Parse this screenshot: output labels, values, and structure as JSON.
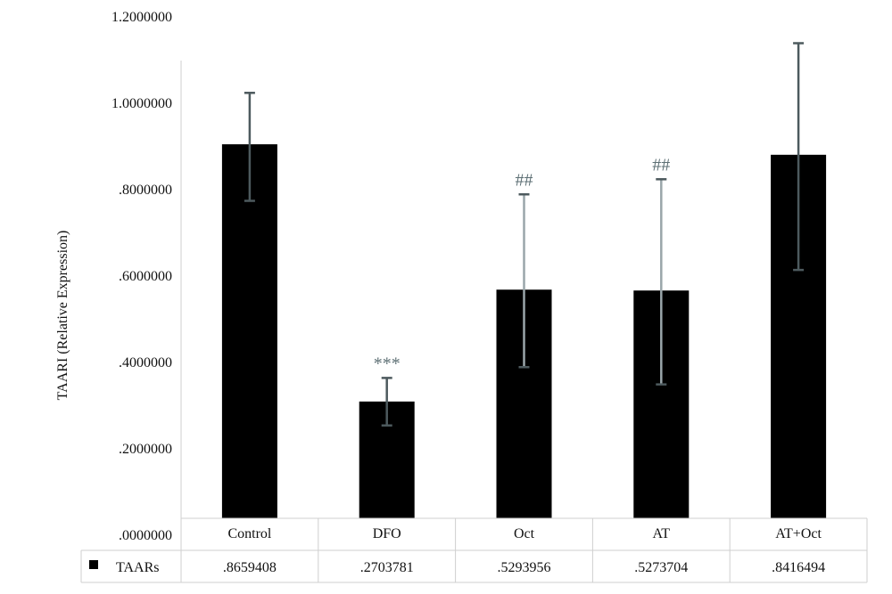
{
  "chart_data": {
    "type": "bar",
    "title": "",
    "ylabel": "TAARI (Relative Expression)",
    "xlabel": "",
    "ylim": [
      0,
      1.2
    ],
    "yticks": [
      {
        "value": 0.0,
        "label": ".0000000"
      },
      {
        "value": 0.2,
        "label": ".2000000"
      },
      {
        "value": 0.4,
        "label": ".4000000"
      },
      {
        "value": 0.6,
        "label": ".6000000"
      },
      {
        "value": 0.8,
        "label": ".8000000"
      },
      {
        "value": 1.0,
        "label": "1.0000000"
      },
      {
        "value": 1.2,
        "label": "1.2000000"
      }
    ],
    "grid": false,
    "categories": [
      "Control",
      "DFO",
      "Oct",
      "AT",
      "AT+Oct"
    ],
    "series": [
      {
        "name": "TAARs",
        "color": "#000000",
        "values": [
          0.8659408,
          0.2703781,
          0.5293956,
          0.5273704,
          0.8416494
        ],
        "value_labels": [
          ".8659408",
          ".2703781",
          ".5293956",
          ".5273704",
          ".8416494"
        ],
        "error_bars": [
          {
            "low": 0.735,
            "high": 0.985
          },
          {
            "low": 0.215,
            "high": 0.325
          },
          {
            "low": 0.35,
            "high": 0.75
          },
          {
            "low": 0.31,
            "high": 0.785
          },
          {
            "low": 0.575,
            "high": 1.1
          }
        ]
      }
    ],
    "annotations": [
      "",
      "***",
      "##",
      "##",
      ""
    ],
    "legend": {
      "placement": "bottom-table",
      "entries": [
        "TAARs"
      ]
    }
  }
}
